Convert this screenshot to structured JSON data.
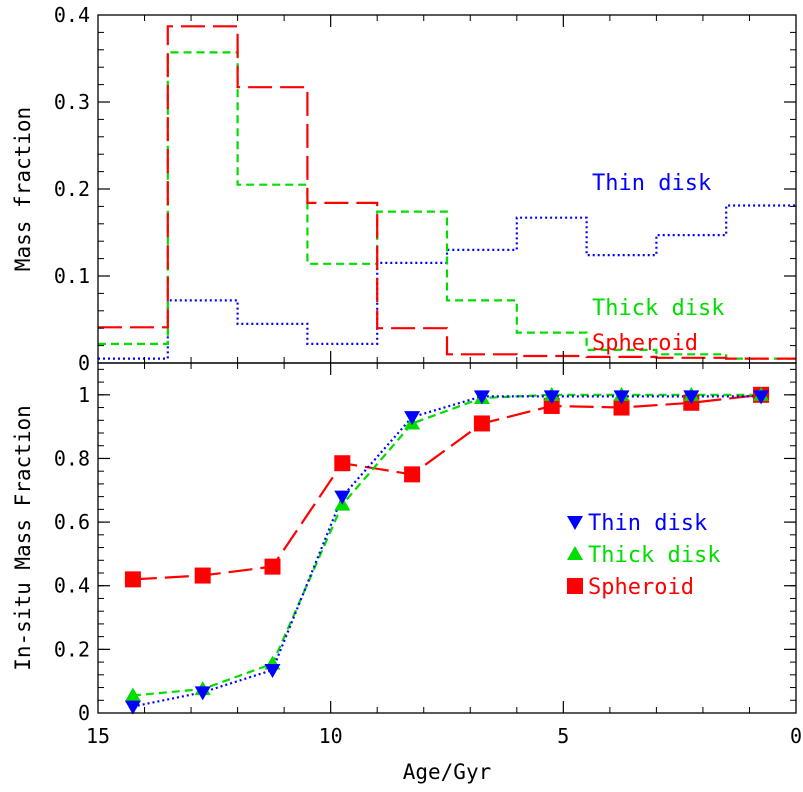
{
  "chart_data": [
    {
      "type": "line",
      "panel": "top",
      "xlabel": "",
      "ylabel": "Mass fraction",
      "xlim": [
        15,
        0
      ],
      "ylim": [
        0,
        0.4
      ],
      "x_ticks": [
        15,
        10,
        5,
        0
      ],
      "x_tick_labels": [],
      "y_ticks": [
        0,
        0.1,
        0.2,
        0.3,
        0.4
      ],
      "y_tick_labels": [
        "0",
        "0.1",
        "0.2",
        "0.3",
        "0.4"
      ],
      "step": true,
      "bin_edges": [
        15,
        13.5,
        12.0,
        10.5,
        9.0,
        7.5,
        6.0,
        4.5,
        3.0,
        1.5,
        0
      ],
      "series": [
        {
          "name": "Thin disk",
          "color": "#0000ff",
          "dash": "dotted",
          "values": [
            0.005,
            0.072,
            0.045,
            0.022,
            0.115,
            0.13,
            0.167,
            0.124,
            0.147,
            0.181
          ]
        },
        {
          "name": "Thick disk",
          "color": "#00dd00",
          "dash": "short-dash",
          "values": [
            0.022,
            0.357,
            0.205,
            0.114,
            0.174,
            0.072,
            0.035,
            0.015,
            0.01,
            0.005
          ]
        },
        {
          "name": "Spheroid",
          "color": "#ff0000",
          "dash": "long-dash",
          "values": [
            0.041,
            0.387,
            0.317,
            0.184,
            0.04,
            0.01,
            0.008,
            0.007,
            0.006,
            0.005
          ]
        }
      ],
      "annotations": [
        "Thin disk",
        "Thick disk",
        "Spheroid"
      ],
      "grid": false
    },
    {
      "type": "line",
      "panel": "bottom",
      "xlabel": "Age/Gyr",
      "ylabel": "In-situ Mass Fraction",
      "xlim": [
        15,
        0
      ],
      "ylim": [
        0,
        1.1
      ],
      "x_ticks": [
        15,
        10,
        5,
        0
      ],
      "x_tick_labels": [
        "15",
        "10",
        "5",
        "0"
      ],
      "y_ticks": [
        0,
        0.2,
        0.4,
        0.6,
        0.8,
        1
      ],
      "y_tick_labels": [
        "0",
        "0.2",
        "0.4",
        "0.6",
        "0.8",
        "1"
      ],
      "x": [
        14.25,
        12.75,
        11.25,
        9.75,
        8.25,
        6.75,
        5.25,
        3.75,
        2.25,
        0.75
      ],
      "series": [
        {
          "name": "Thin disk",
          "color": "#0000ff",
          "dash": "dotted",
          "marker": "triangle-down",
          "values": [
            0.02,
            0.065,
            0.135,
            0.68,
            0.93,
            0.995,
            0.995,
            0.995,
            0.995,
            0.995
          ]
        },
        {
          "name": "Thick disk",
          "color": "#00dd00",
          "dash": "short-dash",
          "marker": "triangle-up",
          "values": [
            0.055,
            0.075,
            0.155,
            0.655,
            0.91,
            0.99,
            1.0,
            1.0,
            1.0,
            1.0
          ]
        },
        {
          "name": "Spheroid",
          "color": "#ff0000",
          "dash": "long-dash",
          "marker": "square",
          "values": [
            0.42,
            0.432,
            0.46,
            0.785,
            0.75,
            0.91,
            0.965,
            0.96,
            0.975,
            1.0
          ]
        }
      ],
      "legend": {
        "position": "center-right",
        "entries": [
          "Thin disk",
          "Thick disk",
          "Spheroid"
        ]
      },
      "grid": false
    }
  ]
}
